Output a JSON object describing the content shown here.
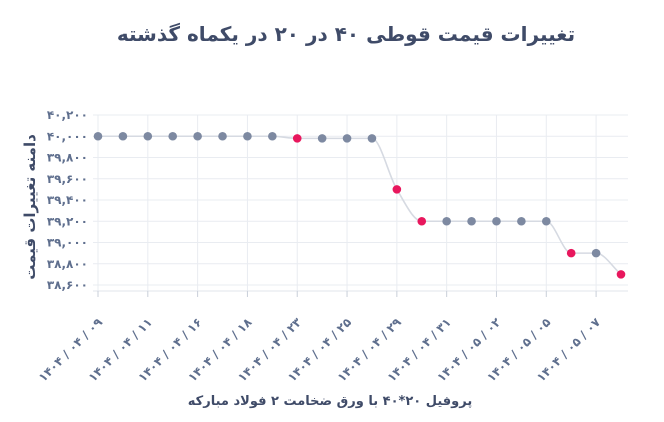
{
  "chart_data": {
    "type": "line",
    "title": "تغییرات قیمت قوطی ۴۰ در ۲۰ در یکماه گذشته",
    "xlabel": "پروفیل ۲۰*۴۰ با ورق ضخامت ۲ فولاد مبارکه",
    "ylabel": "دامنه تغییرات قیمت",
    "ylim": [
      38600,
      40200
    ],
    "y_ticks": [
      {
        "value": 40200,
        "label": "۴۰,۲۰۰"
      },
      {
        "value": 40000,
        "label": "۴۰,۰۰۰"
      },
      {
        "value": 39800,
        "label": "۳۹,۸۰۰"
      },
      {
        "value": 39600,
        "label": "۳۹,۶۰۰"
      },
      {
        "value": 39400,
        "label": "۳۹,۴۰۰"
      },
      {
        "value": 39200,
        "label": "۳۹,۲۰۰"
      },
      {
        "value": 39000,
        "label": "۳۹,۰۰۰"
      },
      {
        "value": 38800,
        "label": "۳۸,۸۰۰"
      },
      {
        "value": 38600,
        "label": "۳۸,۶۰۰"
      }
    ],
    "categories": [
      "۱۴۰۴ / ۰۴ / ۰۹",
      "",
      "۱۴۰۴ / ۰۴ / ۱۱",
      "",
      "۱۴۰۴ / ۰۴ / ۱۶",
      "",
      "۱۴۰۴ / ۰۴ / ۱۸",
      "",
      "۱۴۰۴ / ۰۴ / ۲۳",
      "",
      "۱۴۰۴ / ۰۴ / ۲۵",
      "",
      "۱۴۰۴ / ۰۴ / ۲۹",
      "",
      "۱۴۰۴ / ۰۴ / ۳۱",
      "",
      "۱۴۰۴ / ۰۵ / ۰۲",
      "",
      "۱۴۰۴ / ۰۵ / ۰۵",
      "",
      "۱۴۰۴ / ۰۵ / ۰۷",
      ""
    ],
    "series": [
      {
        "values": [
          40000,
          40000,
          40000,
          40000,
          40000,
          40000,
          40000,
          40000,
          39980,
          39980,
          39980,
          39980,
          39500,
          39200,
          39200,
          39200,
          39200,
          39200,
          39200,
          38900,
          38900,
          38700
        ],
        "point_colors": [
          "#7d89a1",
          "#7d89a1",
          "#7d89a1",
          "#7d89a1",
          "#7d89a1",
          "#7d89a1",
          "#7d89a1",
          "#7d89a1",
          "#e8175d",
          "#7d89a1",
          "#7d89a1",
          "#7d89a1",
          "#e8175d",
          "#e8175d",
          "#7d89a1",
          "#7d89a1",
          "#7d89a1",
          "#7d89a1",
          "#7d89a1",
          "#e8175d",
          "#7d89a1",
          "#e8175d"
        ]
      }
    ],
    "grid": {
      "horizontal": true,
      "vertical": true
    },
    "colors": {
      "title": "#3f4b68",
      "axis_labels": "#5f6f8e",
      "grid": "#e9ecf1",
      "line": "#d6dae2"
    }
  }
}
